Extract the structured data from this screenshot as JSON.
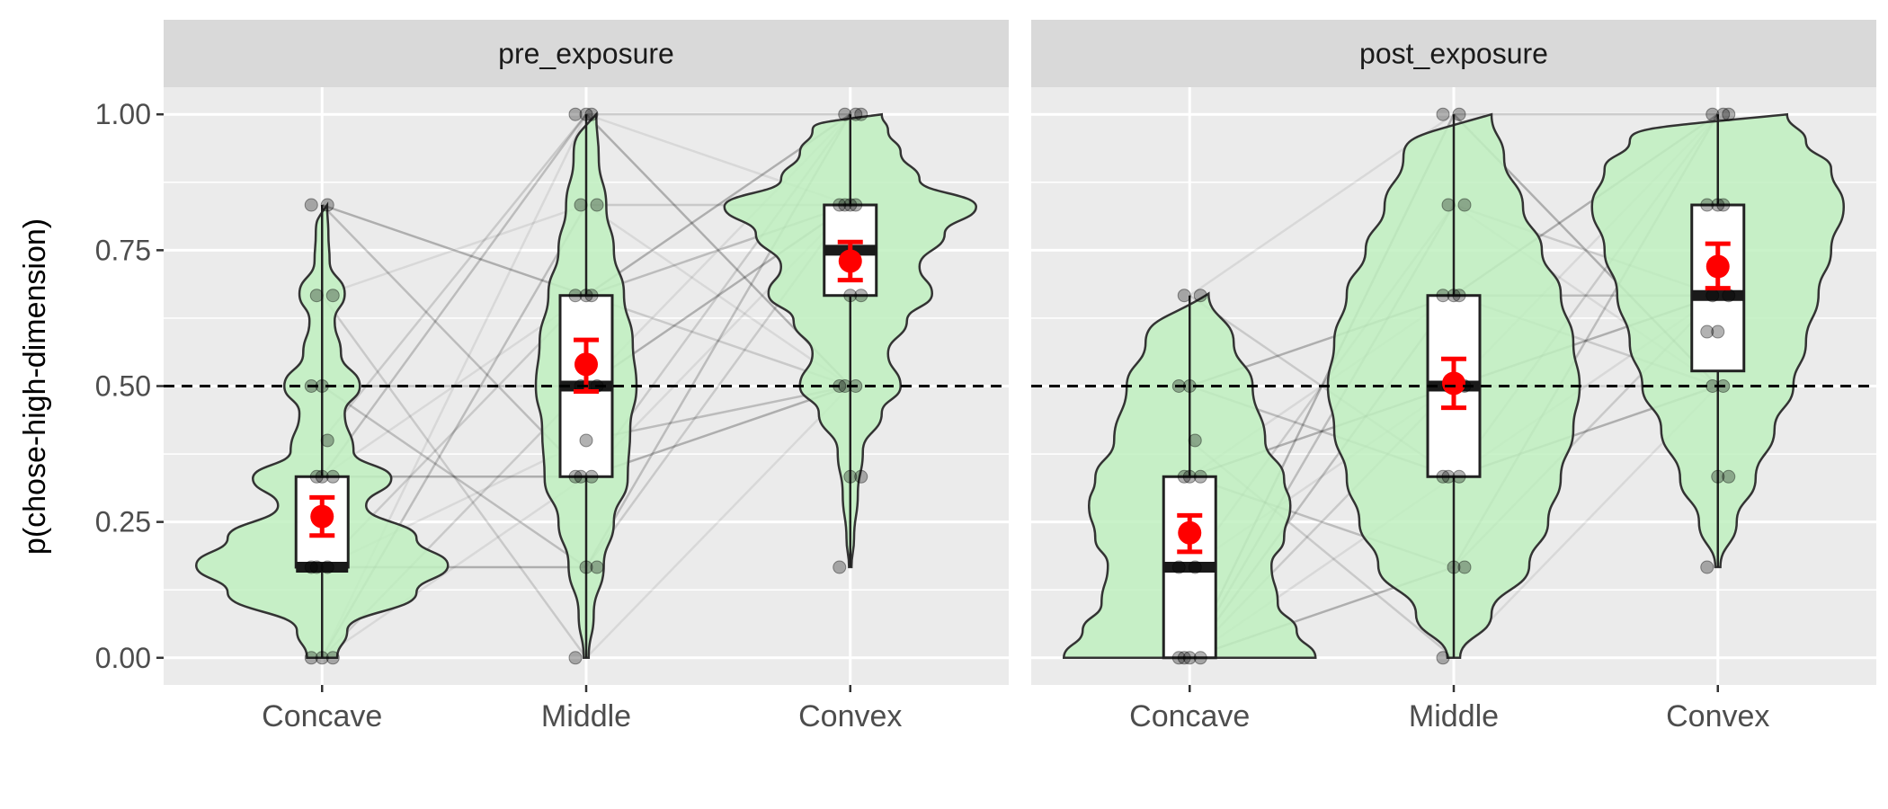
{
  "chart_data": {
    "type": "violin",
    "ylabel": "p(chose-high-dimension)",
    "xlabel": "",
    "ylim": [
      -0.05,
      1.05
    ],
    "yticks": [
      0.0,
      0.25,
      0.5,
      0.75,
      1.0
    ],
    "ytick_labels": [
      "0.00",
      "0.25",
      "0.50",
      "0.75",
      "1.00"
    ],
    "reference_line": {
      "y": 0.5,
      "style": "dashed"
    },
    "categories": [
      "Concave",
      "Middle",
      "Convex"
    ],
    "grid": true,
    "colors": {
      "violin_fill": "#bff0c0",
      "violin_stroke": "#333333",
      "mean": "#ff0000",
      "point": "#000000",
      "panel_bg": "#ebebeb",
      "strip_bg": "#d9d9d9"
    },
    "panels": [
      {
        "strip": "pre_exposure",
        "groups": [
          {
            "category": "Concave",
            "box": {
              "q1": 0.1667,
              "median": 0.1667,
              "q3": 0.3333
            },
            "mean": 0.26,
            "ci": [
              0.225,
              0.295
            ],
            "density": [
              [
                0.0,
                0.12
              ],
              [
                0.05,
                0.2
              ],
              [
                0.12,
                0.75
              ],
              [
                0.17,
                1.0
              ],
              [
                0.22,
                0.75
              ],
              [
                0.28,
                0.35
              ],
              [
                0.33,
                0.55
              ],
              [
                0.38,
                0.25
              ],
              [
                0.45,
                0.18
              ],
              [
                0.5,
                0.3
              ],
              [
                0.56,
                0.15
              ],
              [
                0.62,
                0.1
              ],
              [
                0.67,
                0.18
              ],
              [
                0.73,
                0.06
              ],
              [
                0.78,
                0.05
              ],
              [
                0.833,
                0.04
              ]
            ],
            "points": [
              0,
              0,
              0,
              0.1667,
              0.1667,
              0.1667,
              0.3333,
              0.3333,
              0.3333,
              0.4,
              0.5,
              0.5,
              0.6667,
              0.6667,
              0.8333,
              0.8333
            ]
          },
          {
            "category": "Middle",
            "box": {
              "q1": 0.3333,
              "median": 0.5,
              "q3": 0.6667
            },
            "mean": 0.54,
            "ci": [
              0.49,
              0.585
            ],
            "density": [
              [
                0.0,
                0.02
              ],
              [
                0.08,
                0.06
              ],
              [
                0.17,
                0.14
              ],
              [
                0.25,
                0.22
              ],
              [
                0.33,
                0.33
              ],
              [
                0.42,
                0.35
              ],
              [
                0.5,
                0.4
              ],
              [
                0.58,
                0.37
              ],
              [
                0.67,
                0.3
              ],
              [
                0.75,
                0.22
              ],
              [
                0.83,
                0.16
              ],
              [
                0.92,
                0.1
              ],
              [
                1.0,
                0.08
              ]
            ],
            "points": [
              0,
              0.1667,
              0.1667,
              0.3333,
              0.3333,
              0.3333,
              0.4,
              0.5,
              0.5,
              0.6667,
              0.6667,
              0.6667,
              0.8333,
              0.8333,
              1,
              1,
              1
            ]
          },
          {
            "category": "Convex",
            "box": {
              "q1": 0.6667,
              "median": 0.75,
              "q3": 0.8333
            },
            "mean": 0.73,
            "ci": [
              0.695,
              0.765
            ],
            "density": [
              [
                0.167,
                0.01
              ],
              [
                0.22,
                0.03
              ],
              [
                0.3,
                0.06
              ],
              [
                0.38,
                0.1
              ],
              [
                0.45,
                0.25
              ],
              [
                0.5,
                0.4
              ],
              [
                0.56,
                0.3
              ],
              [
                0.62,
                0.45
              ],
              [
                0.67,
                0.65
              ],
              [
                0.72,
                0.55
              ],
              [
                0.78,
                0.75
              ],
              [
                0.83,
                1.0
              ],
              [
                0.88,
                0.55
              ],
              [
                0.93,
                0.4
              ],
              [
                0.97,
                0.3
              ],
              [
                1.0,
                0.25
              ]
            ],
            "points": [
              0.1667,
              0.3333,
              0.3333,
              0.5,
              0.5,
              0.5,
              0.6667,
              0.6667,
              0.8333,
              0.8333,
              0.8333,
              0.8333,
              1,
              1,
              1
            ]
          }
        ]
      },
      {
        "strip": "post_exposure",
        "groups": [
          {
            "category": "Concave",
            "box": {
              "q1": 0.0,
              "median": 0.1667,
              "q3": 0.3333
            },
            "mean": 0.23,
            "ci": [
              0.195,
              0.262
            ],
            "density": [
              [
                0.0,
                1.0
              ],
              [
                0.05,
                0.85
              ],
              [
                0.1,
                0.7
              ],
              [
                0.17,
                0.65
              ],
              [
                0.22,
                0.75
              ],
              [
                0.28,
                0.8
              ],
              [
                0.33,
                0.75
              ],
              [
                0.4,
                0.6
              ],
              [
                0.5,
                0.5
              ],
              [
                0.58,
                0.35
              ],
              [
                0.67,
                0.15
              ]
            ],
            "points": [
              0,
              0,
              0,
              0,
              0.1667,
              0.1667,
              0.3333,
              0.3333,
              0.3333,
              0.4,
              0.5,
              0.5,
              0.6667,
              0.6667
            ]
          },
          {
            "category": "Middle",
            "box": {
              "q1": 0.3333,
              "median": 0.5,
              "q3": 0.6667
            },
            "mean": 0.505,
            "ci": [
              0.46,
              0.55
            ],
            "density": [
              [
                0.0,
                0.05
              ],
              [
                0.08,
                0.3
              ],
              [
                0.17,
                0.6
              ],
              [
                0.25,
                0.75
              ],
              [
                0.33,
                0.85
              ],
              [
                0.42,
                0.95
              ],
              [
                0.5,
                1.0
              ],
              [
                0.58,
                0.95
              ],
              [
                0.67,
                0.85
              ],
              [
                0.75,
                0.7
              ],
              [
                0.83,
                0.55
              ],
              [
                0.92,
                0.4
              ],
              [
                1.0,
                0.3
              ]
            ],
            "points": [
              0,
              0.1667,
              0.1667,
              0.3333,
              0.3333,
              0.3333,
              0.5,
              0.5,
              0.5,
              0.6667,
              0.6667,
              0.6667,
              0.8333,
              0.8333,
              1,
              1
            ]
          },
          {
            "category": "Convex",
            "box": {
              "q1": 0.5278,
              "median": 0.6667,
              "q3": 0.8333
            },
            "mean": 0.72,
            "ci": [
              0.68,
              0.762
            ],
            "density": [
              [
                0.167,
                0.02
              ],
              [
                0.25,
                0.15
              ],
              [
                0.33,
                0.3
              ],
              [
                0.42,
                0.45
              ],
              [
                0.5,
                0.6
              ],
              [
                0.58,
                0.7
              ],
              [
                0.67,
                0.8
              ],
              [
                0.75,
                0.9
              ],
              [
                0.83,
                1.0
              ],
              [
                0.9,
                0.9
              ],
              [
                0.95,
                0.7
              ],
              [
                1.0,
                0.55
              ]
            ],
            "points": [
              0.1667,
              0.3333,
              0.3333,
              0.5,
              0.5,
              0.6,
              0.6,
              0.6667,
              0.6667,
              0.8333,
              0.8333,
              0.8333,
              1,
              1,
              1
            ]
          }
        ]
      }
    ]
  }
}
